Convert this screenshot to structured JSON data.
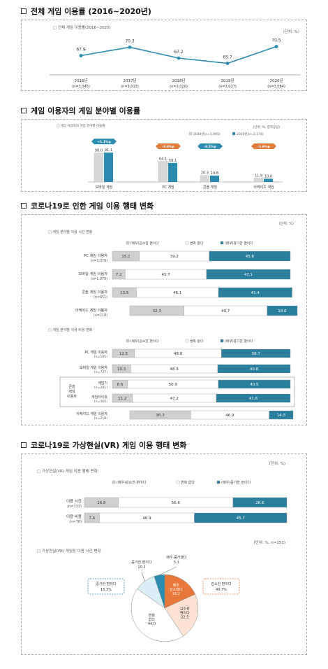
{
  "section1": {
    "title": "전체 게임 이용률 (2016~2020년)",
    "chart_data": {
      "type": "line",
      "title": "전체 게임 이용률(2016~2020)",
      "unit": "(단위: %)",
      "categories": [
        "2016년",
        "2017년",
        "2018년",
        "2019년",
        "2020년"
      ],
      "samples": [
        "(n=3,045)",
        "(n=3,013)",
        "(n=3,020)",
        "(n=3,037)",
        "(n=3,084)"
      ],
      "values": [
        67.9,
        70.3,
        67.2,
        65.7,
        70.5
      ],
      "color": "#2b8cb0"
    }
  },
  "section2": {
    "title": "게임 이용자의 게임 분야별 이용률",
    "chart_data": {
      "type": "bar",
      "title": "게임 이용자의 게임 분야별 이용률",
      "unit": "(단위: %, 중복응답)",
      "categories": [
        "모바일 게임",
        "PC 게임",
        "콘솔 게임",
        "아케이드 게임"
      ],
      "series": [
        {
          "name": "2019년(n=1,995)",
          "values": [
            90.0,
            64.1,
            20.3,
            11.9
          ],
          "color": "#d8d8d8"
        },
        {
          "name": "2020년(n=2,174)",
          "values": [
            91.1,
            59.1,
            19.8,
            10.0
          ],
          "color": "#2b8cb0"
        }
      ],
      "changes": [
        "+1.1%p",
        "-5.0%p",
        "-0.5%p",
        "-1.9%p"
      ],
      "change_colors": [
        "#2b8cb0",
        "#e07b39",
        "#2b8cb0",
        "#e07b39"
      ]
    }
  },
  "section3": {
    "title": "코로나19로 인한 게임 이용 행태 변화",
    "unit": "(단위: %)",
    "legend": [
      "(매우)감소한 편이다",
      "변화 없다",
      "(매우)증가한 편이다"
    ],
    "chart_data": [
      {
        "type": "bar",
        "title": "게임 분야별 이용 시간 변화",
        "stacked": true,
        "rows": [
          {
            "label": "PC 게임 이용자",
            "n": "(n=1,379)",
            "values": [
              15.2,
              39.2,
              45.6
            ]
          },
          {
            "label": "모바일 게임 이용자",
            "n": "(n=1,979)",
            "values": [
              7.2,
              45.7,
              47.1
            ]
          },
          {
            "label": "콘솔 게임 이용자",
            "n": "(n=451)",
            "values": [
              13.5,
              46.1,
              41.4
            ]
          },
          {
            "label": "아케이드 게임 이용자",
            "n": "(n=218)",
            "values": [
              32.3,
              49.7,
              18.0
            ]
          }
        ]
      },
      {
        "type": "bar",
        "title": "게임 분야별 이용 비용 변화",
        "stacked": true,
        "group_label": [
          "콘솔",
          "게임",
          "이용자"
        ],
        "rows": [
          {
            "label": "PC 게임 이용자",
            "n": "(n=595)",
            "values": [
              12.5,
              48.8,
              38.7
            ]
          },
          {
            "label": "모바일 게임 이용자",
            "n": "(n=727)",
            "values": [
              10.3,
              48.9,
              40.8
            ]
          },
          {
            "label": "게임기",
            "n": "(n=281)",
            "values": [
              8.6,
              50.9,
              40.5
            ]
          },
          {
            "label": "게임타이틀",
            "n": "(n=365)",
            "values": [
              11.2,
              47.2,
              41.6
            ]
          },
          {
            "label": "아케이드 게임 이용자",
            "n": "(n=218)",
            "values": [
              36.3,
              46.9,
              14.3
            ]
          }
        ]
      }
    ],
    "colors": [
      "#d0d0d0",
      "#ffffff",
      "#2b7f9e"
    ]
  },
  "section4": {
    "title": "코로나19로 가상현실(VR) 게임 이용 행태 변화",
    "chart_data": [
      {
        "type": "bar",
        "title": "가상현실(VR) 게임 이용 행태 변화",
        "unit": "(단위: %)",
        "stacked": true,
        "legend": [
          "(매우)감소한 편이다",
          "변화 없다",
          "(매우)증가한 편이다"
        ],
        "rows": [
          {
            "label": "이용 시간",
            "n": "(n=133)",
            "values": [
              16.8,
              56.6,
              26.6
            ]
          },
          {
            "label": "이용 비용",
            "n": "(n=78)",
            "values": [
              7.4,
              46.9,
              45.7
            ]
          }
        ]
      },
      {
        "type": "pie",
        "title": "가상현실(VR) 게임장 이용 시간 변화",
        "unit": "(단위: %, n=151)",
        "slices": [
          {
            "label": "매우 감소했다",
            "value": 18.2,
            "color": "#e8783a"
          },
          {
            "label": "감소한 편이다",
            "value": 22.5,
            "color": "#fbe2d2"
          },
          {
            "label": "변화 없다",
            "value": 44.0,
            "color": "#ffffff"
          },
          {
            "label": "증가한 편이다",
            "value": 10.2,
            "color": "#daeef6"
          },
          {
            "label": "매우 증가했다",
            "value": 5.1,
            "color": "#2b8cb0"
          }
        ],
        "group_boxes": [
          {
            "label": "증가한 편이다",
            "value": "15.3%",
            "color": "#2b8cb0"
          },
          {
            "label": "감소한 편이다",
            "value": "40.7%",
            "color": "#e07b39"
          }
        ]
      }
    ]
  }
}
